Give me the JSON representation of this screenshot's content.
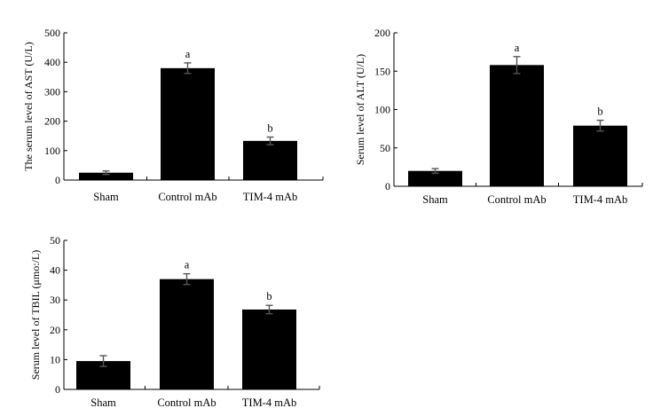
{
  "chart_data": [
    {
      "type": "bar",
      "ylabel": "The serum level of AST (U/L)",
      "categories": [
        "Sham",
        "Control mAb",
        "TIM-4 mAb"
      ],
      "values": [
        25,
        380,
        133
      ],
      "errors": [
        6,
        18,
        13
      ],
      "significance": [
        "",
        "a",
        "b"
      ],
      "ylim": [
        0,
        500
      ],
      "yticks": [
        0,
        100,
        200,
        300,
        400,
        500
      ],
      "bar_color": "#000000",
      "grid": false,
      "legend": "none"
    },
    {
      "type": "bar",
      "ylabel": "Serum level of ALT (U/L)",
      "categories": [
        "Sham",
        "Control mAb",
        "TIM-4 mAb"
      ],
      "values": [
        20,
        158,
        79
      ],
      "errors": [
        3,
        11,
        7
      ],
      "significance": [
        "",
        "a",
        "b"
      ],
      "ylim": [
        0,
        200
      ],
      "yticks": [
        0,
        50,
        100,
        150,
        200
      ],
      "bar_color": "#000000",
      "grid": false,
      "legend": "none"
    },
    {
      "type": "bar",
      "ylabel": "Serum level of TBIL (μmo:/L)",
      "categories": [
        "Sham",
        "Control mAb",
        "TIM-4 mAb"
      ],
      "values": [
        9.5,
        37,
        26.8
      ],
      "errors": [
        1.8,
        1.8,
        1.4
      ],
      "significance": [
        "",
        "a",
        "b"
      ],
      "ylim": [
        0,
        50
      ],
      "yticks": [
        0,
        10,
        20,
        30,
        40,
        50
      ],
      "bar_color": "#000000",
      "grid": false,
      "legend": "none"
    }
  ]
}
